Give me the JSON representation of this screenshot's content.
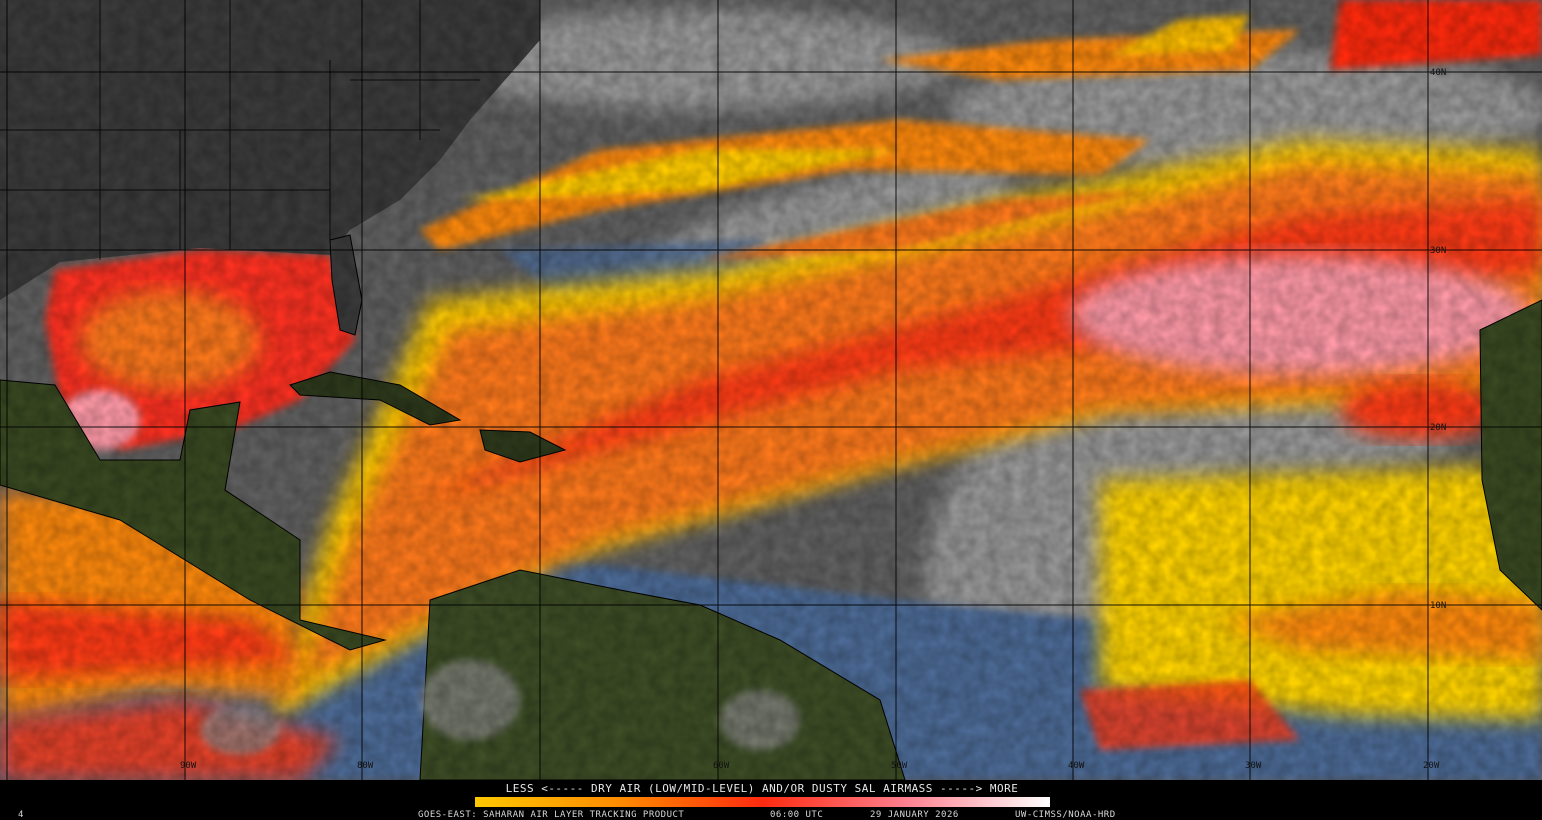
{
  "map": {
    "legend": {
      "caption": "LESS <----- DRY AIR (LOW/MID-LEVEL) AND/OR DUSTY SAL AIRMASS -----> MORE"
    },
    "footer": {
      "frame": "4",
      "product": "GOES-EAST: SAHARAN AIR LAYER TRACKING PRODUCT",
      "time": "06:00 UTC",
      "date": "29 JANUARY 2026",
      "credit": "UW-CIMSS/NOAA-HRD"
    },
    "lat_labels": [
      "40N",
      "30N",
      "20N",
      "10N"
    ],
    "lon_labels": [
      "90W",
      "80W",
      "60W",
      "50W",
      "40W",
      "30W",
      "20W"
    ]
  }
}
